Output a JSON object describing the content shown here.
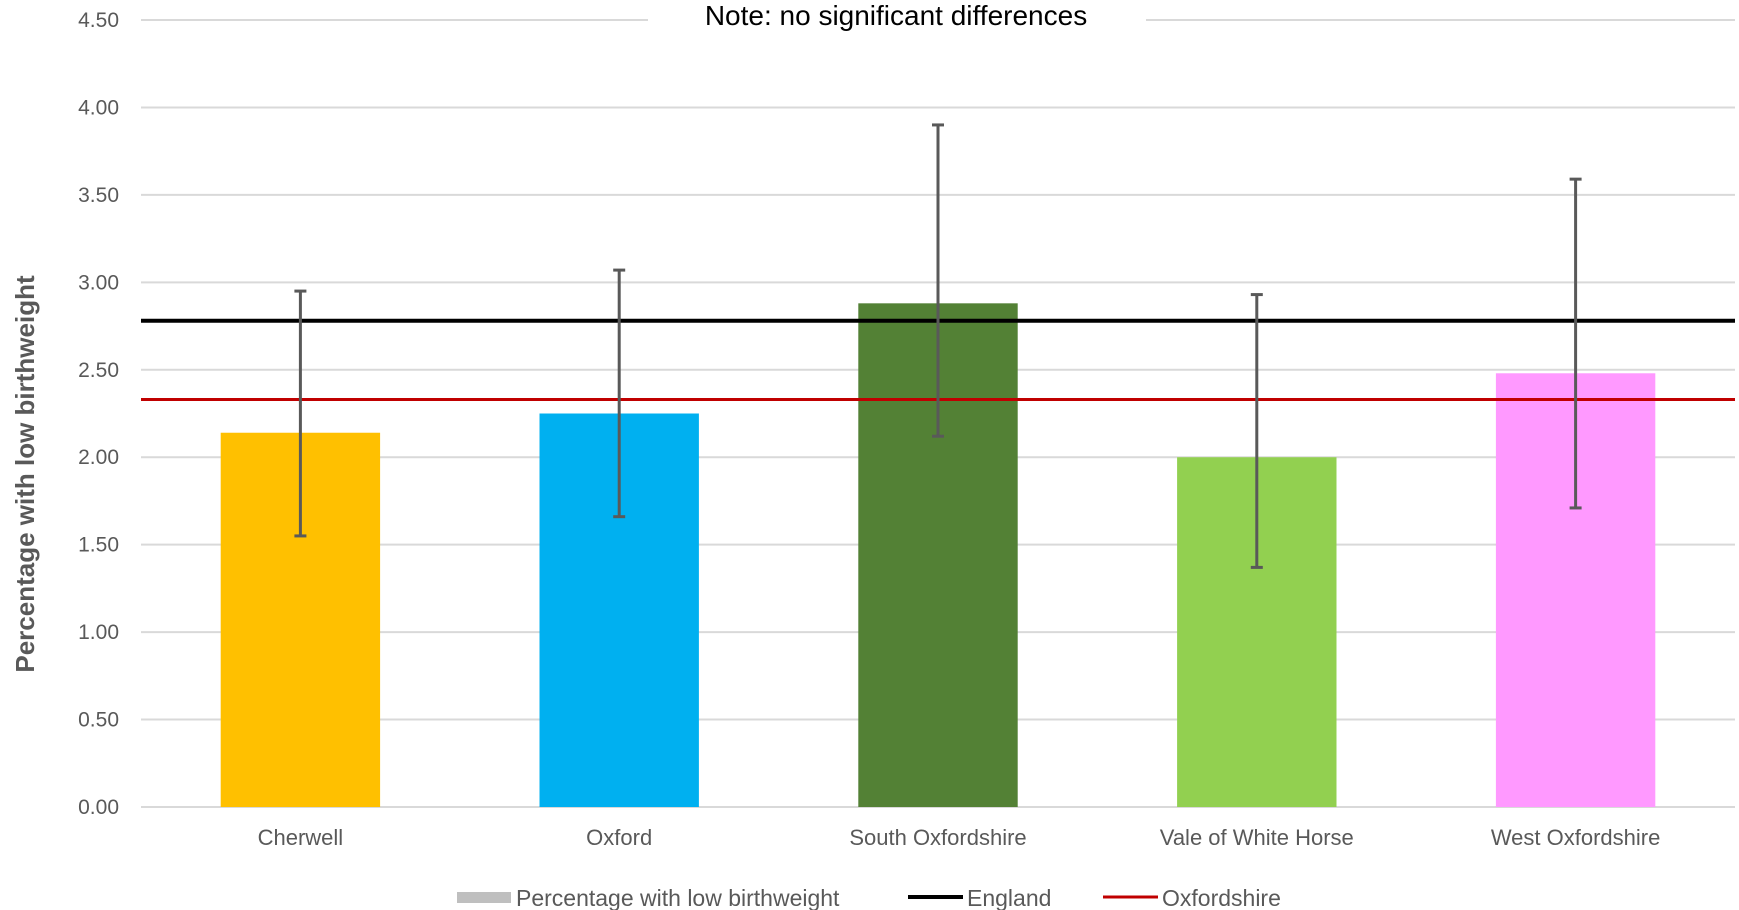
{
  "chart_data": {
    "type": "bar",
    "title": "",
    "annotation": "Note: no significant differences",
    "xlabel": "",
    "ylabel": "Percentage with low birthweight",
    "ylim": [
      0,
      4.5
    ],
    "yticks": [
      "0.00",
      "0.50",
      "1.00",
      "1.50",
      "2.00",
      "2.50",
      "3.00",
      "3.50",
      "4.00",
      "4.50"
    ],
    "grid": true,
    "legend_position": "bottom",
    "categories": [
      "Cherwell",
      "Oxford",
      "South Oxfordshire",
      "Vale of White Horse",
      "West Oxfordshire"
    ],
    "series": [
      {
        "name": "Percentage with low birthweight",
        "values": [
          2.14,
          2.25,
          2.88,
          2.0,
          2.48
        ],
        "ci_lower": [
          1.55,
          1.66,
          2.12,
          1.37,
          1.71
        ],
        "ci_upper": [
          2.95,
          3.07,
          3.9,
          2.93,
          3.59
        ],
        "colors": [
          "#FFC000",
          "#00B0F0",
          "#538135",
          "#92D050",
          "#FF99FF"
        ],
        "legend_color": "#BFBFBF"
      }
    ],
    "reference_lines": [
      {
        "name": "England",
        "value": 2.78,
        "color": "#000000"
      },
      {
        "name": "Oxfordshire",
        "value": 2.33,
        "color": "#C00000"
      }
    ]
  }
}
